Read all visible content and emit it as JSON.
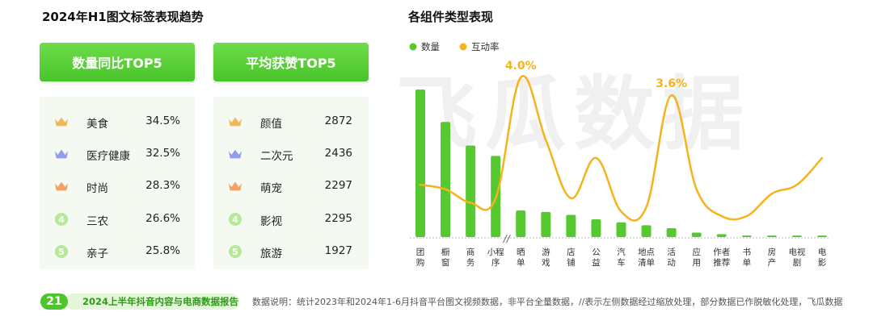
{
  "left": {
    "title": "2024年H1图文标签表现趋势",
    "banner_growth": "数量同比TOP5",
    "banner_likes": "平均获赞TOP5",
    "growth_items": [
      {
        "rank": "1",
        "label": "美食",
        "value": "34.5%"
      },
      {
        "rank": "2",
        "label": "医疗健康",
        "value": "32.5%"
      },
      {
        "rank": "3",
        "label": "时尚",
        "value": "28.3%"
      },
      {
        "rank": "4",
        "label": "三农",
        "value": "26.6%"
      },
      {
        "rank": "5",
        "label": "亲子",
        "value": "25.8%"
      }
    ],
    "likes_items": [
      {
        "rank": "1",
        "label": "颜值",
        "value": "2872"
      },
      {
        "rank": "2",
        "label": "二次元",
        "value": "2436"
      },
      {
        "rank": "3",
        "label": "萌宠",
        "value": "2297"
      },
      {
        "rank": "4",
        "label": "影视",
        "value": "2295"
      },
      {
        "rank": "5",
        "label": "旅游",
        "value": "1927"
      }
    ],
    "crown_colors": {
      "1": "#f2b654",
      "2": "#8f9cf0",
      "3": "#f4a25e"
    }
  },
  "watermark": "飞瓜数据",
  "chart_data": {
    "type": "bar",
    "title": "各组件类型表现",
    "categories": [
      "团购",
      "橱窗",
      "商务",
      "小程序",
      "晒单",
      "游戏",
      "店铺",
      "公益",
      "汽车",
      "地点清单",
      "活动",
      "应用",
      "作者推荐",
      "书单",
      "房产",
      "电视剧",
      "电影"
    ],
    "category_lines": [
      [
        "团",
        "购"
      ],
      [
        "橱",
        "窗"
      ],
      [
        "商",
        "务"
      ],
      [
        "小程",
        "序"
      ],
      [
        "晒",
        "单"
      ],
      [
        "游",
        "戏"
      ],
      [
        "店",
        "铺"
      ],
      [
        "公",
        "益"
      ],
      [
        "汽",
        "车"
      ],
      [
        "地点",
        "清单"
      ],
      [
        "活",
        "动"
      ],
      [
        "应",
        "用"
      ],
      [
        "作者",
        "推荐"
      ],
      [
        "书",
        "单"
      ],
      [
        "房",
        "产"
      ],
      [
        "电视",
        "剧"
      ],
      [
        "电",
        "影"
      ]
    ],
    "axis_break_marker": "//",
    "series": [
      {
        "name": "数量",
        "type": "bar",
        "color": "#55c92f",
        "values": [
          100,
          78,
          62,
          55,
          18,
          17,
          15,
          12,
          10,
          8,
          6,
          3,
          2,
          1,
          1,
          1,
          1
        ]
      },
      {
        "name": "互动率",
        "type": "line",
        "color": "#f5b31b",
        "values": [
          1.6,
          1.5,
          1.2,
          1.3,
          4.0,
          2.6,
          1.3,
          2.2,
          1.0,
          1.1,
          3.6,
          1.5,
          0.9,
          0.9,
          1.4,
          1.6,
          2.2
        ],
        "unit": "%"
      }
    ],
    "annotations": [
      {
        "category": "晒单",
        "series": "互动率",
        "text": "4.0%"
      },
      {
        "category": "活动",
        "series": "互动率",
        "text": "3.6%"
      }
    ],
    "legend_position": "top-left",
    "grid": false
  },
  "footer": {
    "page_number": "21",
    "report_title": "2024上半年抖音内容与电商数据报告",
    "note": "数据说明：统计2023年和2024年1-6月抖音平台图文视频数据，非平台全量数据，//表示左侧数据经过缩放处理，部分数据已作脱敏化处理，飞瓜数据"
  }
}
